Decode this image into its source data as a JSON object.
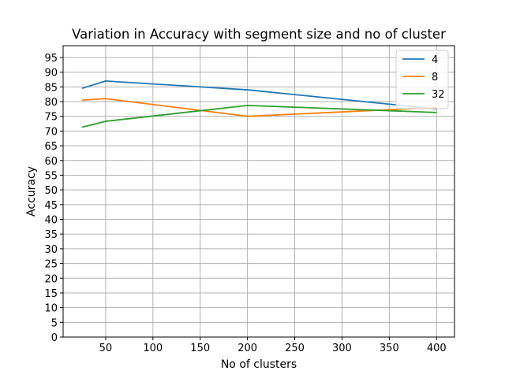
{
  "chart_data": {
    "type": "line",
    "title": "Variation in Accuracy with segment size and no of cluster",
    "xlabel": "No of clusters",
    "ylabel": "Accuracy",
    "x": [
      25,
      50,
      200,
      400
    ],
    "xlim": [
      5,
      419
    ],
    "ylim": [
      0,
      99
    ],
    "x_ticks": [
      50,
      100,
      150,
      200,
      250,
      300,
      350,
      400
    ],
    "y_ticks": [
      0,
      5,
      10,
      15,
      20,
      25,
      30,
      35,
      40,
      45,
      50,
      55,
      60,
      65,
      70,
      75,
      80,
      85,
      90,
      95
    ],
    "grid": true,
    "legend_position": "top-right",
    "series": [
      {
        "name": "4",
        "color": "#1f77b4",
        "values": [
          84.5,
          87.0,
          84.0,
          77.5
        ]
      },
      {
        "name": "8",
        "color": "#ff7f0e",
        "values": [
          80.5,
          81.0,
          75.0,
          78.0
        ]
      },
      {
        "name": "32",
        "color": "#2ca02c",
        "values": [
          71.3,
          73.3,
          78.7,
          76.3
        ]
      }
    ]
  }
}
